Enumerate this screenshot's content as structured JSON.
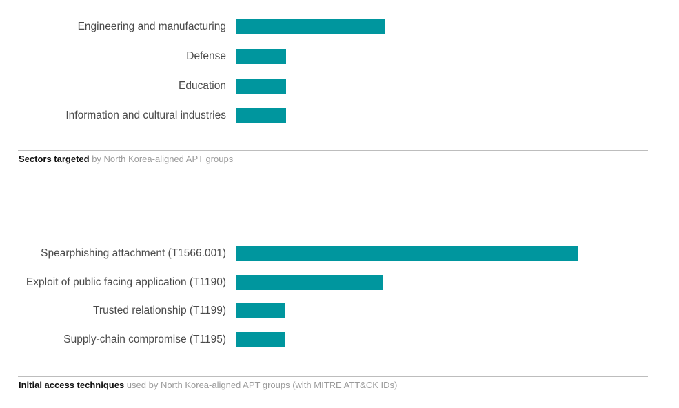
{
  "chart_data": [
    {
      "type": "bar",
      "orientation": "horizontal",
      "categories": [
        "Engineering and manufacturing",
        "Defense",
        "Education",
        "Information and cultural industries"
      ],
      "values": [
        3,
        1,
        1,
        1
      ],
      "bar_color": "#00969e",
      "caption_bold": "Sectors targeted",
      "caption_rest": " by North Korea-aligned APT groups"
    },
    {
      "type": "bar",
      "orientation": "horizontal",
      "categories": [
        "Spearphishing attachment (T1566.001)",
        "Exploit of public facing application (T1190)",
        "Trusted relationship (T1199)",
        "Supply-chain compromise (T1195)"
      ],
      "values": [
        7,
        3,
        1,
        1
      ],
      "bar_color": "#00969e",
      "caption_bold": "Initial access techniques",
      "caption_rest": " used by North Korea-aligned APT groups (with MITRE ATT&CK IDs)"
    }
  ]
}
